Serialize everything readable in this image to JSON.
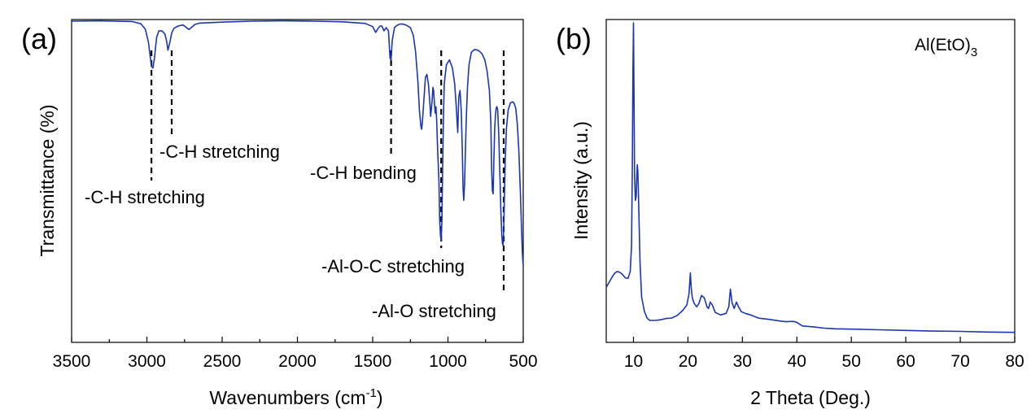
{
  "colors": {
    "series": "#1c35b0",
    "axis": "#000000",
    "background": "#ffffff"
  },
  "chart_data": [
    {
      "type": "line",
      "panel_label": "(a)",
      "title": "",
      "xlabel": "Wavenumbers (cm",
      "xlabel_sup": "-1",
      "xlabel_suffix": ")",
      "ylabel": "Transmittance (%)",
      "xlim": [
        3500,
        500
      ],
      "ylim": [
        0,
        100
      ],
      "x_ticks": [
        3500,
        3000,
        2500,
        2000,
        1500,
        1000,
        500
      ],
      "x_minor_ticks": [
        3250,
        2750,
        2250,
        1750,
        1250,
        750
      ],
      "y_ticks_shown": false,
      "series": [
        {
          "x": [
            3500,
            3300,
            3100,
            3040,
            3010,
            2990,
            2970,
            2960,
            2950,
            2935,
            2920,
            2900,
            2880,
            2870,
            2860,
            2845,
            2835,
            2820,
            2790,
            2760,
            2740,
            2720,
            2700,
            2680,
            2650,
            2500,
            2300,
            2100,
            1900,
            1700,
            1550,
            1500,
            1480,
            1465,
            1450,
            1440,
            1425,
            1410,
            1395,
            1385,
            1378,
            1370,
            1355,
            1340,
            1320,
            1300,
            1280,
            1250,
            1230,
            1215,
            1200,
            1190,
            1180,
            1175,
            1170,
            1160,
            1150,
            1140,
            1130,
            1120,
            1115,
            1105,
            1100,
            1095,
            1090,
            1085,
            1080,
            1075,
            1068,
            1060,
            1055,
            1050,
            1045,
            1040,
            1035,
            1030,
            1025,
            1010,
            990,
            970,
            955,
            945,
            935,
            928,
            920,
            912,
            905,
            900,
            895,
            890,
            885,
            878,
            870,
            860,
            845,
            825,
            800,
            775,
            755,
            740,
            725,
            715,
            710,
            705,
            700,
            695,
            690,
            685,
            680,
            675,
            670,
            662,
            655,
            648,
            642,
            638,
            634,
            630,
            625,
            620,
            612,
            600,
            585,
            570,
            560,
            550,
            540,
            530,
            520,
            512,
            506,
            502,
            500
          ],
          "y": [
            99.5,
            99.6,
            99.4,
            98.7,
            97,
            93,
            85.5,
            85,
            88,
            94.5,
            96.5,
            96.5,
            95.5,
            93.5,
            90.5,
            93.5,
            95.8,
            97.3,
            98,
            98.3,
            97.6,
            96.9,
            97.7,
            98.5,
            98.9,
            99.2,
            99.5,
            99.6,
            99.5,
            99.3,
            98.8,
            97.8,
            96,
            97.2,
            98,
            98,
            96.5,
            97.5,
            96.5,
            88,
            87.5,
            93.5,
            97.5,
            98.1,
            98.6,
            98.6,
            98.3,
            97.5,
            95,
            90,
            81,
            72,
            67,
            66,
            68,
            75,
            82,
            83,
            80,
            74,
            70,
            75,
            79,
            78,
            74,
            71,
            73,
            69,
            59,
            50,
            38,
            33,
            31.5,
            38,
            55,
            70,
            80,
            86,
            87.5,
            85,
            80,
            73,
            65,
            76,
            78,
            72,
            60,
            48,
            44,
            49,
            58,
            70,
            79,
            86,
            89.8,
            90.7,
            90.5,
            89.5,
            87.5,
            84,
            78,
            68,
            54,
            47,
            46,
            56,
            66,
            70,
            72.5,
            73,
            72,
            64,
            52,
            40,
            33,
            30.5,
            30,
            35,
            45,
            56,
            66,
            72,
            74.2,
            74.5,
            74,
            72.5,
            68,
            60,
            48,
            36,
            28,
            25,
            24
          ]
        }
      ],
      "annotations": [
        {
          "text": "-C-H stretching",
          "x": 2970
        },
        {
          "text": "-C-H stretching",
          "x": 2835
        },
        {
          "text": "-C-H bending",
          "x": 1378
        },
        {
          "text": "-Al-O-C stretching",
          "x": 1045
        },
        {
          "text": "-Al-O stretching",
          "x": 630
        }
      ]
    },
    {
      "type": "line",
      "panel_label": "(b)",
      "title": "",
      "xlabel": "2 Theta (Deg.)",
      "ylabel": "Intensity (a.u.)",
      "xlim": [
        5,
        80
      ],
      "ylim": [
        0,
        100
      ],
      "x_ticks": [
        10,
        20,
        30,
        40,
        50,
        60,
        70,
        80
      ],
      "y_ticks_shown": false,
      "legend": {
        "label": "Al(EtO)",
        "label_sub": "3",
        "placement": "top-right"
      },
      "series": [
        {
          "name": "Al(EtO)3",
          "x": [
            5,
            5.5,
            6,
            6.5,
            7,
            7.5,
            8,
            8.5,
            9,
            9.4,
            9.65,
            9.8,
            9.9,
            10,
            10.1,
            10.2,
            10.35,
            10.5,
            10.6,
            10.7,
            10.8,
            10.9,
            11.05,
            11.2,
            11.5,
            12,
            12.5,
            13,
            14,
            15,
            16,
            17,
            18,
            19,
            19.8,
            20.2,
            20.45,
            20.6,
            20.8,
            21.1,
            21.6,
            22,
            22.5,
            23,
            23.5,
            23.8,
            24.1,
            24.5,
            25,
            26,
            27,
            27.5,
            27.8,
            28.1,
            28.5,
            28.9,
            29.3,
            29.8,
            30.5,
            31.5,
            33,
            35,
            37,
            38,
            39.3,
            40,
            41,
            43,
            45,
            47,
            50,
            55,
            60,
            65,
            70,
            75,
            80
          ],
          "y": [
            17,
            18.5,
            20,
            21.3,
            22,
            21.7,
            21,
            20,
            19.8,
            22,
            30,
            55,
            84,
            99,
            78,
            52,
            44,
            45,
            51,
            55,
            53,
            47,
            36,
            25,
            14,
            9.6,
            7.5,
            6.8,
            6.8,
            7,
            7.4,
            7.5,
            8.3,
            9.8,
            11.6,
            15,
            21.5,
            17,
            13.8,
            12.2,
            11,
            12,
            14.5,
            13.8,
            11,
            10.5,
            12.5,
            11.5,
            9.3,
            8.5,
            9,
            11,
            16.5,
            12.3,
            10.5,
            12.5,
            11,
            9.5,
            9,
            8.5,
            7.5,
            7.1,
            6.6,
            6.4,
            6.5,
            6.2,
            5.1,
            4.8,
            4.4,
            4.2,
            4.1,
            3.9,
            3.7,
            3.5,
            3.4,
            3.2,
            3.1
          ]
        }
      ]
    }
  ]
}
